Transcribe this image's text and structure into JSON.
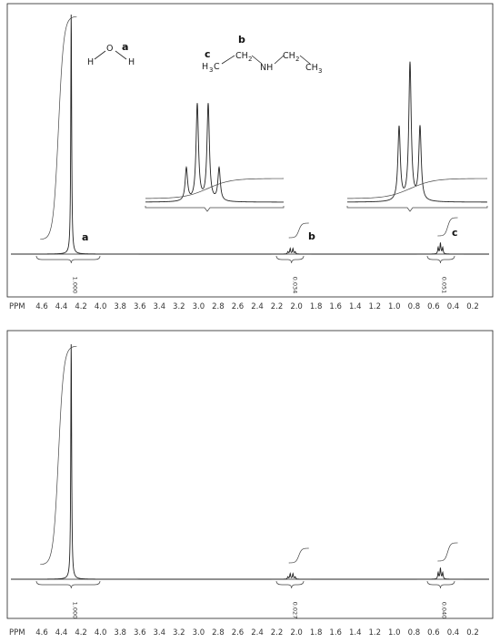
{
  "chart_data": [
    {
      "type": "line",
      "spectrum": "1H NMR",
      "xlabel": "PPM",
      "x_ticks": [
        "4.6",
        "4.4",
        "4.2",
        "4.0",
        "3.8",
        "3.6",
        "3.4",
        "3.2",
        "3.0",
        "2.8",
        "2.6",
        "2.4",
        "2.2",
        "2.0",
        "1.8",
        "1.6",
        "1.4",
        "1.2",
        "1.0",
        "0.8",
        "0.6",
        "0.4",
        "0.2"
      ],
      "xlim": [
        4.75,
        0.05
      ],
      "peaks": [
        {
          "ppm": 4.3,
          "height": 1.0,
          "label": "a",
          "integral": "1.000",
          "multiplicity": "singlet"
        },
        {
          "ppm": 2.05,
          "height": 0.03,
          "label": "b",
          "integral": "0.034",
          "multiplicity": "quartet"
        },
        {
          "ppm": 0.53,
          "height": 0.05,
          "label": "c",
          "integral": "0.051",
          "multiplicity": "triplet"
        }
      ],
      "insets": [
        {
          "peak": "b",
          "center_ppm": 2.05,
          "multiplicity": "quartet"
        },
        {
          "peak": "c",
          "center_ppm": 0.53,
          "multiplicity": "triplet"
        }
      ],
      "structures": {
        "water": {
          "atoms": [
            "H",
            "O",
            "H"
          ],
          "label": "a"
        },
        "diethylamine": {
          "left_group": "H3C",
          "ch2": "CH2",
          "nh": "NH",
          "right_ch2": "CH2",
          "right_group": "CH3",
          "labels": [
            "b",
            "c"
          ]
        }
      }
    },
    {
      "type": "line",
      "spectrum": "1H NMR",
      "xlabel": "PPM",
      "x_ticks": [
        "4.6",
        "4.4",
        "4.2",
        "4.0",
        "3.8",
        "3.6",
        "3.4",
        "3.2",
        "3.0",
        "2.8",
        "2.6",
        "2.4",
        "2.2",
        "2.0",
        "1.8",
        "1.6",
        "1.4",
        "1.2",
        "1.0",
        "0.8",
        "0.6",
        "0.4",
        "0.2"
      ],
      "xlim": [
        4.75,
        0.05
      ],
      "peaks": [
        {
          "ppm": 4.3,
          "height": 1.0,
          "integral": "1.000",
          "multiplicity": "singlet"
        },
        {
          "ppm": 2.05,
          "height": 0.03,
          "integral": "0.027",
          "multiplicity": "quartet"
        },
        {
          "ppm": 0.53,
          "height": 0.05,
          "integral": "0.040",
          "multiplicity": "triplet"
        }
      ]
    }
  ]
}
